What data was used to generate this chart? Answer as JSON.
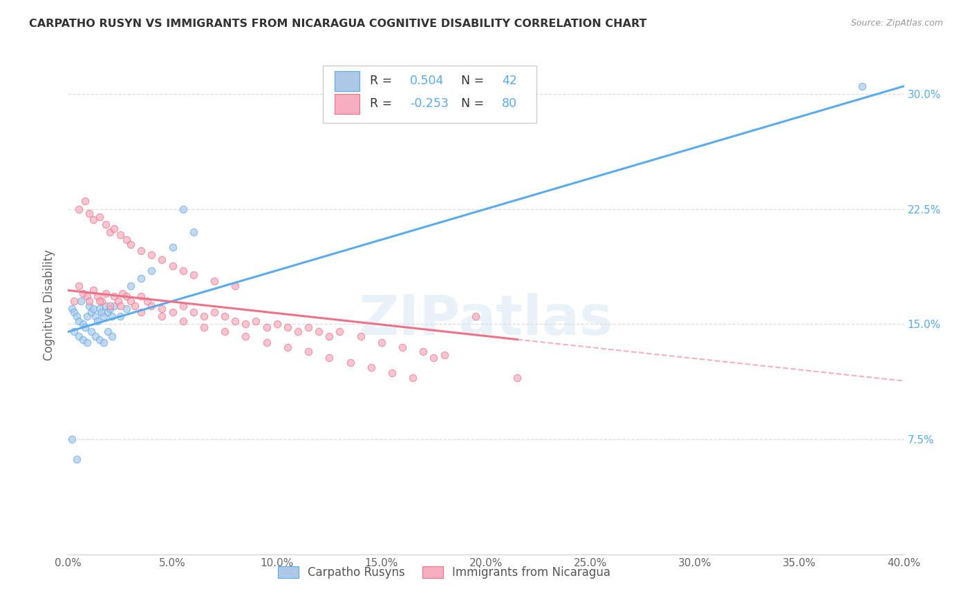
{
  "title": "CARPATHO RUSYN VS IMMIGRANTS FROM NICARAGUA COGNITIVE DISABILITY CORRELATION CHART",
  "source": "Source: ZipAtlas.com",
  "ylabel": "Cognitive Disability",
  "xlim": [
    0.0,
    40.0
  ],
  "ylim": [
    0.0,
    32.5
  ],
  "xticks": [
    0.0,
    5.0,
    10.0,
    15.0,
    20.0,
    25.0,
    30.0,
    35.0,
    40.0
  ],
  "xtick_labels": [
    "0.0%",
    "5.0%",
    "10.0%",
    "15.0%",
    "20.0%",
    "25.0%",
    "30.0%",
    "35.0%",
    "40.0%"
  ],
  "yticks_right": [
    7.5,
    15.0,
    22.5,
    30.0
  ],
  "ytick_labels_right": [
    "7.5%",
    "15.0%",
    "22.5%",
    "30.0%"
  ],
  "series1_color": "#adc9e8",
  "series2_color": "#f5afc0",
  "line1_color": "#5aabee",
  "line2_color": "#f07088",
  "R1": 0.504,
  "N1": 42,
  "R2": -0.253,
  "N2": 80,
  "legend_label1": "Carpatho Rusyns",
  "legend_label2": "Immigrants from Nicaragua",
  "watermark": "ZIPatlas",
  "background_color": "#ffffff",
  "series1_x": [
    0.2,
    0.3,
    0.4,
    0.5,
    0.6,
    0.7,
    0.8,
    0.9,
    1.0,
    1.1,
    1.2,
    1.3,
    1.4,
    1.5,
    1.6,
    1.7,
    1.8,
    1.9,
    2.0,
    2.1,
    2.2,
    2.5,
    2.8,
    3.0,
    3.5,
    4.0,
    5.0,
    6.0,
    0.3,
    0.5,
    0.7,
    0.9,
    1.1,
    1.3,
    1.5,
    1.7,
    1.9,
    2.1,
    0.2,
    0.4,
    5.5,
    38.0
  ],
  "series1_y": [
    16.0,
    15.8,
    15.5,
    15.2,
    16.5,
    15.0,
    14.8,
    15.5,
    16.2,
    15.8,
    16.0,
    15.5,
    15.2,
    16.0,
    15.8,
    15.5,
    16.2,
    15.8,
    16.0,
    15.5,
    16.2,
    15.5,
    16.0,
    17.5,
    18.0,
    18.5,
    20.0,
    21.0,
    14.5,
    14.2,
    14.0,
    13.8,
    14.5,
    14.2,
    14.0,
    13.8,
    14.5,
    14.2,
    7.5,
    6.2,
    22.5,
    30.5
  ],
  "series2_x": [
    0.3,
    0.5,
    0.7,
    0.9,
    1.0,
    1.2,
    1.4,
    1.6,
    1.8,
    2.0,
    2.2,
    2.4,
    2.6,
    2.8,
    3.0,
    3.2,
    3.5,
    3.8,
    4.0,
    4.5,
    5.0,
    5.5,
    6.0,
    6.5,
    7.0,
    7.5,
    8.0,
    8.5,
    9.0,
    9.5,
    10.0,
    10.5,
    11.0,
    11.5,
    12.0,
    12.5,
    13.0,
    14.0,
    15.0,
    16.0,
    17.0,
    18.0,
    19.5,
    21.5,
    0.5,
    0.8,
    1.0,
    1.2,
    1.5,
    1.8,
    2.0,
    2.2,
    2.5,
    2.8,
    3.0,
    3.5,
    4.0,
    4.5,
    5.0,
    5.5,
    6.0,
    7.0,
    8.0,
    1.5,
    2.5,
    3.5,
    4.5,
    5.5,
    6.5,
    7.5,
    8.5,
    9.5,
    10.5,
    11.5,
    12.5,
    13.5,
    14.5,
    15.5,
    16.5,
    17.5
  ],
  "series2_y": [
    16.5,
    17.5,
    17.0,
    16.8,
    16.5,
    17.2,
    16.8,
    16.5,
    17.0,
    16.2,
    16.8,
    16.5,
    17.0,
    16.8,
    16.5,
    16.2,
    16.8,
    16.5,
    16.2,
    16.0,
    15.8,
    16.2,
    15.8,
    15.5,
    15.8,
    15.5,
    15.2,
    15.0,
    15.2,
    14.8,
    15.0,
    14.8,
    14.5,
    14.8,
    14.5,
    14.2,
    14.5,
    14.2,
    13.8,
    13.5,
    13.2,
    13.0,
    15.5,
    11.5,
    22.5,
    23.0,
    22.2,
    21.8,
    22.0,
    21.5,
    21.0,
    21.2,
    20.8,
    20.5,
    20.2,
    19.8,
    19.5,
    19.2,
    18.8,
    18.5,
    18.2,
    17.8,
    17.5,
    16.5,
    16.2,
    15.8,
    15.5,
    15.2,
    14.8,
    14.5,
    14.2,
    13.8,
    13.5,
    13.2,
    12.8,
    12.5,
    12.2,
    11.8,
    11.5,
    12.8
  ],
  "line1_x_start": 0.0,
  "line1_x_end": 40.0,
  "line1_y_start": 14.5,
  "line1_y_end": 30.5,
  "line2_x_start": 0.0,
  "line2_x_end": 21.5,
  "line2_y_start": 17.2,
  "line2_y_end": 14.0,
  "line2_dash_x_start": 21.5,
  "line2_dash_x_end": 40.0,
  "line2_dash_y_start": 14.0,
  "line2_dash_y_end": 11.3
}
